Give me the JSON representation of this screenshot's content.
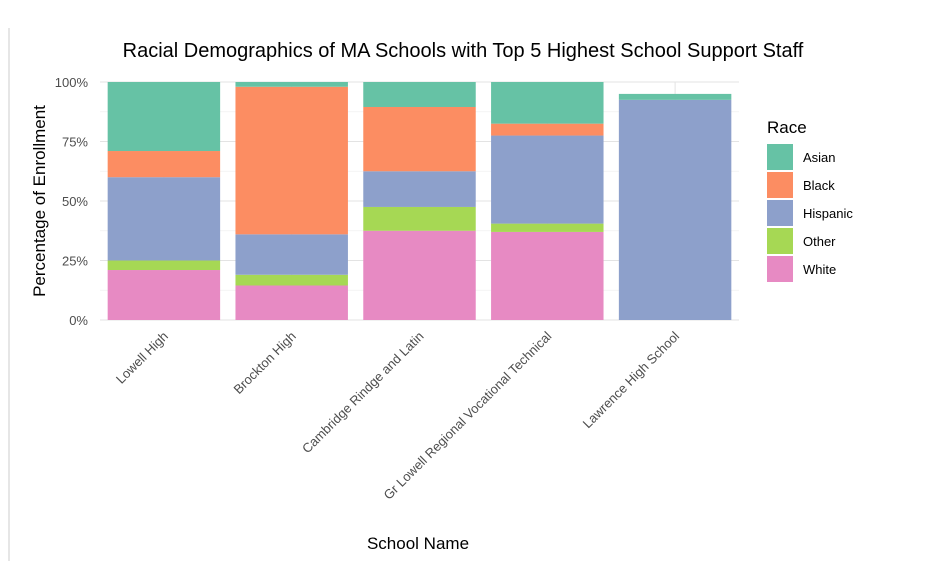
{
  "chart_data": {
    "type": "bar",
    "stacked": true,
    "title": "Racial Demographics of MA Schools with Top 5 Highest School Support Staff",
    "xlabel": "School Name",
    "ylabel": "Percentage of Enrollment",
    "ylim": [
      0,
      100
    ],
    "yticks": [
      "0%",
      "25%",
      "50%",
      "75%",
      "100%"
    ],
    "grid": true,
    "legend_title": "Race",
    "legend_position": "right",
    "categories": [
      "Lowell High",
      "Brockton High",
      "Cambridge Rindge and Latin",
      "Gr Lowell Regional Vocational Technical",
      "Lawrence High School"
    ],
    "series": [
      {
        "name": "White",
        "color": "#e78ac3",
        "values": [
          21,
          14.5,
          37.5,
          37,
          0
        ]
      },
      {
        "name": "Other",
        "color": "#a6d854",
        "values": [
          4,
          4.5,
          10,
          3.5,
          0
        ]
      },
      {
        "name": "Hispanic",
        "color": "#8da0cb",
        "values": [
          35,
          17,
          15,
          37,
          92.5
        ]
      },
      {
        "name": "Black",
        "color": "#fc8d62",
        "values": [
          11,
          62,
          27,
          5,
          0
        ]
      },
      {
        "name": "Asian",
        "color": "#66c2a5",
        "values": [
          29,
          2,
          10.5,
          17.5,
          2.5
        ]
      }
    ],
    "legend_order": [
      "Asian",
      "Black",
      "Hispanic",
      "Other",
      "White"
    ]
  }
}
